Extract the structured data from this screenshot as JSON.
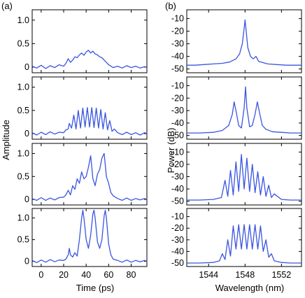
{
  "panel_labels": {
    "left": "(a)",
    "right": "(b)"
  },
  "chart_data": [
    {
      "type": "line",
      "panel": "(a)",
      "xlabel": "Time (ps)",
      "ylabel": "Amplitude",
      "xlim": [
        -8,
        94
      ],
      "ylim": [
        -0.12,
        1.22
      ],
      "xticks": [
        0,
        20,
        40,
        60,
        80
      ],
      "yticks": [
        0,
        0.5,
        1.0
      ],
      "ytick_labels": [
        "0",
        "0.5",
        "1.0"
      ],
      "grid": false,
      "legend": "none",
      "color": "#3a55e0",
      "subplots": [
        {
          "x": [
            -8,
            -4,
            0,
            4,
            8,
            12,
            16,
            20,
            22,
            24,
            26,
            28,
            30,
            32,
            34,
            36,
            38,
            40,
            42,
            44,
            46,
            48,
            50,
            52,
            54,
            56,
            58,
            60,
            62,
            64,
            68,
            72,
            76,
            80,
            84,
            88,
            92,
            94
          ],
          "y": [
            0.02,
            -0.02,
            0.04,
            -0.03,
            0.03,
            -0.01,
            0.05,
            0.02,
            0.08,
            0.18,
            0.1,
            0.15,
            0.22,
            0.2,
            0.26,
            0.3,
            0.25,
            0.32,
            0.36,
            0.3,
            0.34,
            0.28,
            0.26,
            0.22,
            0.2,
            0.15,
            0.1,
            0.05,
            0.02,
            -0.01,
            0.02,
            -0.02,
            0.03,
            -0.01,
            0.02,
            -0.02,
            0.01,
            0.0
          ]
        },
        {
          "x": [
            -8,
            -4,
            0,
            4,
            8,
            12,
            16,
            20,
            22,
            24,
            25,
            27,
            29,
            31,
            33,
            35,
            37,
            39,
            41,
            43,
            45,
            47,
            49,
            51,
            53,
            55,
            57,
            59,
            61,
            63,
            65,
            68,
            72,
            76,
            80,
            84,
            88,
            92,
            94
          ],
          "y": [
            0.02,
            -0.03,
            0.03,
            -0.02,
            0.04,
            -0.01,
            0.03,
            0.02,
            0.08,
            0.1,
            0.22,
            0.12,
            0.4,
            0.1,
            0.5,
            0.12,
            0.55,
            0.14,
            0.56,
            0.14,
            0.56,
            0.13,
            0.55,
            0.12,
            0.52,
            0.1,
            0.45,
            0.08,
            0.28,
            0.05,
            0.1,
            0.02,
            -0.02,
            0.03,
            -0.02,
            0.02,
            -0.03,
            0.02,
            0.0
          ]
        },
        {
          "x": [
            -8,
            -4,
            0,
            4,
            8,
            12,
            16,
            20,
            22,
            24,
            26,
            28,
            30,
            32,
            34,
            36,
            38,
            40,
            42,
            44,
            46,
            48,
            50,
            52,
            54,
            56,
            58,
            60,
            62,
            64,
            68,
            72,
            76,
            80,
            84,
            88,
            92,
            94
          ],
          "y": [
            0.02,
            -0.02,
            0.04,
            -0.02,
            0.03,
            -0.01,
            0.04,
            0.05,
            0.1,
            0.2,
            0.1,
            0.3,
            0.22,
            0.45,
            0.35,
            0.6,
            0.45,
            0.5,
            0.7,
            0.95,
            0.45,
            0.3,
            0.55,
            0.65,
            0.9,
            1.0,
            0.5,
            0.35,
            0.15,
            0.08,
            0.02,
            -0.02,
            0.03,
            -0.02,
            0.02,
            -0.01,
            0.02,
            0.0
          ]
        },
        {
          "x": [
            -8,
            -4,
            0,
            4,
            8,
            12,
            16,
            20,
            22,
            24,
            25,
            26,
            28,
            30,
            32,
            34,
            36,
            37,
            38,
            40,
            42,
            44,
            46,
            47,
            48,
            50,
            52,
            54,
            56,
            57,
            58,
            60,
            62,
            64,
            68,
            72,
            76,
            80,
            84,
            88,
            92,
            94
          ],
          "y": [
            0.02,
            -0.03,
            0.03,
            -0.02,
            0.04,
            -0.01,
            0.03,
            0.02,
            0.05,
            0.15,
            0.3,
            0.15,
            0.1,
            0.2,
            0.12,
            0.5,
            1.0,
            1.18,
            1.0,
            0.5,
            0.3,
            0.6,
            1.1,
            1.18,
            1.0,
            0.45,
            0.3,
            0.5,
            1.05,
            1.18,
            1.0,
            0.4,
            0.15,
            0.05,
            0.02,
            -0.02,
            0.03,
            -0.02,
            0.02,
            -0.01,
            0.02,
            0.0
          ]
        }
      ]
    },
    {
      "type": "line",
      "panel": "(b)",
      "xlabel": "Wavelength (nm)",
      "ylabel": "Power (dB)",
      "xlim": [
        1541.6,
        1554.2
      ],
      "xticks": [
        1544,
        1548,
        1552
      ],
      "yticks_per_subplot": [
        [
          -10,
          -20,
          -30,
          -40,
          -50
        ],
        [
          -10,
          -20,
          -30,
          -40,
          -50
        ],
        [
          -10,
          -20,
          -30,
          -40,
          -50
        ],
        [
          -10,
          -20,
          -30,
          -40,
          -50
        ]
      ],
      "ylim": [
        -53,
        -3
      ],
      "grid": false,
      "legend": "none",
      "color": "#3a55e0",
      "subplots": [
        {
          "x": [
            1541.6,
            1542.5,
            1543.5,
            1544.5,
            1545.5,
            1546.3,
            1547.0,
            1547.4,
            1547.7,
            1547.9,
            1548.0,
            1548.1,
            1548.3,
            1548.6,
            1548.9,
            1549.2,
            1549.5,
            1550.0,
            1550.5,
            1551.5,
            1552.5,
            1553.5,
            1554.2
          ],
          "y": [
            -47,
            -47,
            -46.5,
            -46,
            -45.5,
            -44.5,
            -42,
            -38,
            -30,
            -18,
            -11,
            -18,
            -33,
            -40,
            -42,
            -40,
            -44,
            -45,
            -46,
            -46.5,
            -47,
            -47,
            -47
          ]
        },
        {
          "x": [
            1541.6,
            1543,
            1544.5,
            1545.5,
            1546.2,
            1546.6,
            1546.8,
            1547.0,
            1547.3,
            1547.6,
            1547.9,
            1548.05,
            1548.2,
            1548.5,
            1548.8,
            1549.1,
            1549.35,
            1549.6,
            1549.9,
            1550.3,
            1551,
            1552,
            1553,
            1554.2
          ],
          "y": [
            -48,
            -48,
            -47.5,
            -46,
            -42,
            -33,
            -23,
            -30,
            -42,
            -44,
            -28,
            -11,
            -28,
            -43,
            -42,
            -33,
            -23,
            -32,
            -42,
            -45,
            -47,
            -47.5,
            -48,
            -48
          ]
        },
        {
          "x": [
            1541.6,
            1543,
            1544.5,
            1545.4,
            1545.8,
            1546.1,
            1546.4,
            1546.7,
            1547.0,
            1547.3,
            1547.6,
            1547.9,
            1548.2,
            1548.5,
            1548.8,
            1549.1,
            1549.4,
            1549.7,
            1550.0,
            1550.3,
            1550.6,
            1550.9,
            1551.2,
            1552,
            1553,
            1554.2
          ],
          "y": [
            -49,
            -49,
            -48.5,
            -47,
            -33,
            -46,
            -25,
            -45,
            -18,
            -42,
            -12,
            -40,
            -15,
            -42,
            -20,
            -43,
            -26,
            -45,
            -30,
            -46,
            -37,
            -47,
            -44,
            -48.5,
            -49,
            -49
          ]
        },
        {
          "x": [
            1541.6,
            1543,
            1544.5,
            1545.2,
            1545.5,
            1545.8,
            1546.1,
            1546.4,
            1546.7,
            1547.0,
            1547.3,
            1547.6,
            1547.9,
            1548.2,
            1548.5,
            1548.8,
            1549.1,
            1549.4,
            1549.7,
            1550.0,
            1550.3,
            1550.6,
            1550.9,
            1551.2,
            1552,
            1553,
            1554.2
          ],
          "y": [
            -50,
            -50,
            -49.5,
            -48,
            -42,
            -47,
            -30,
            -44,
            -18,
            -38,
            -17,
            -38,
            -17,
            -38,
            -17,
            -38,
            -17,
            -38,
            -18,
            -40,
            -30,
            -45,
            -42,
            -48,
            -49.5,
            -50,
            -50
          ]
        }
      ]
    }
  ]
}
